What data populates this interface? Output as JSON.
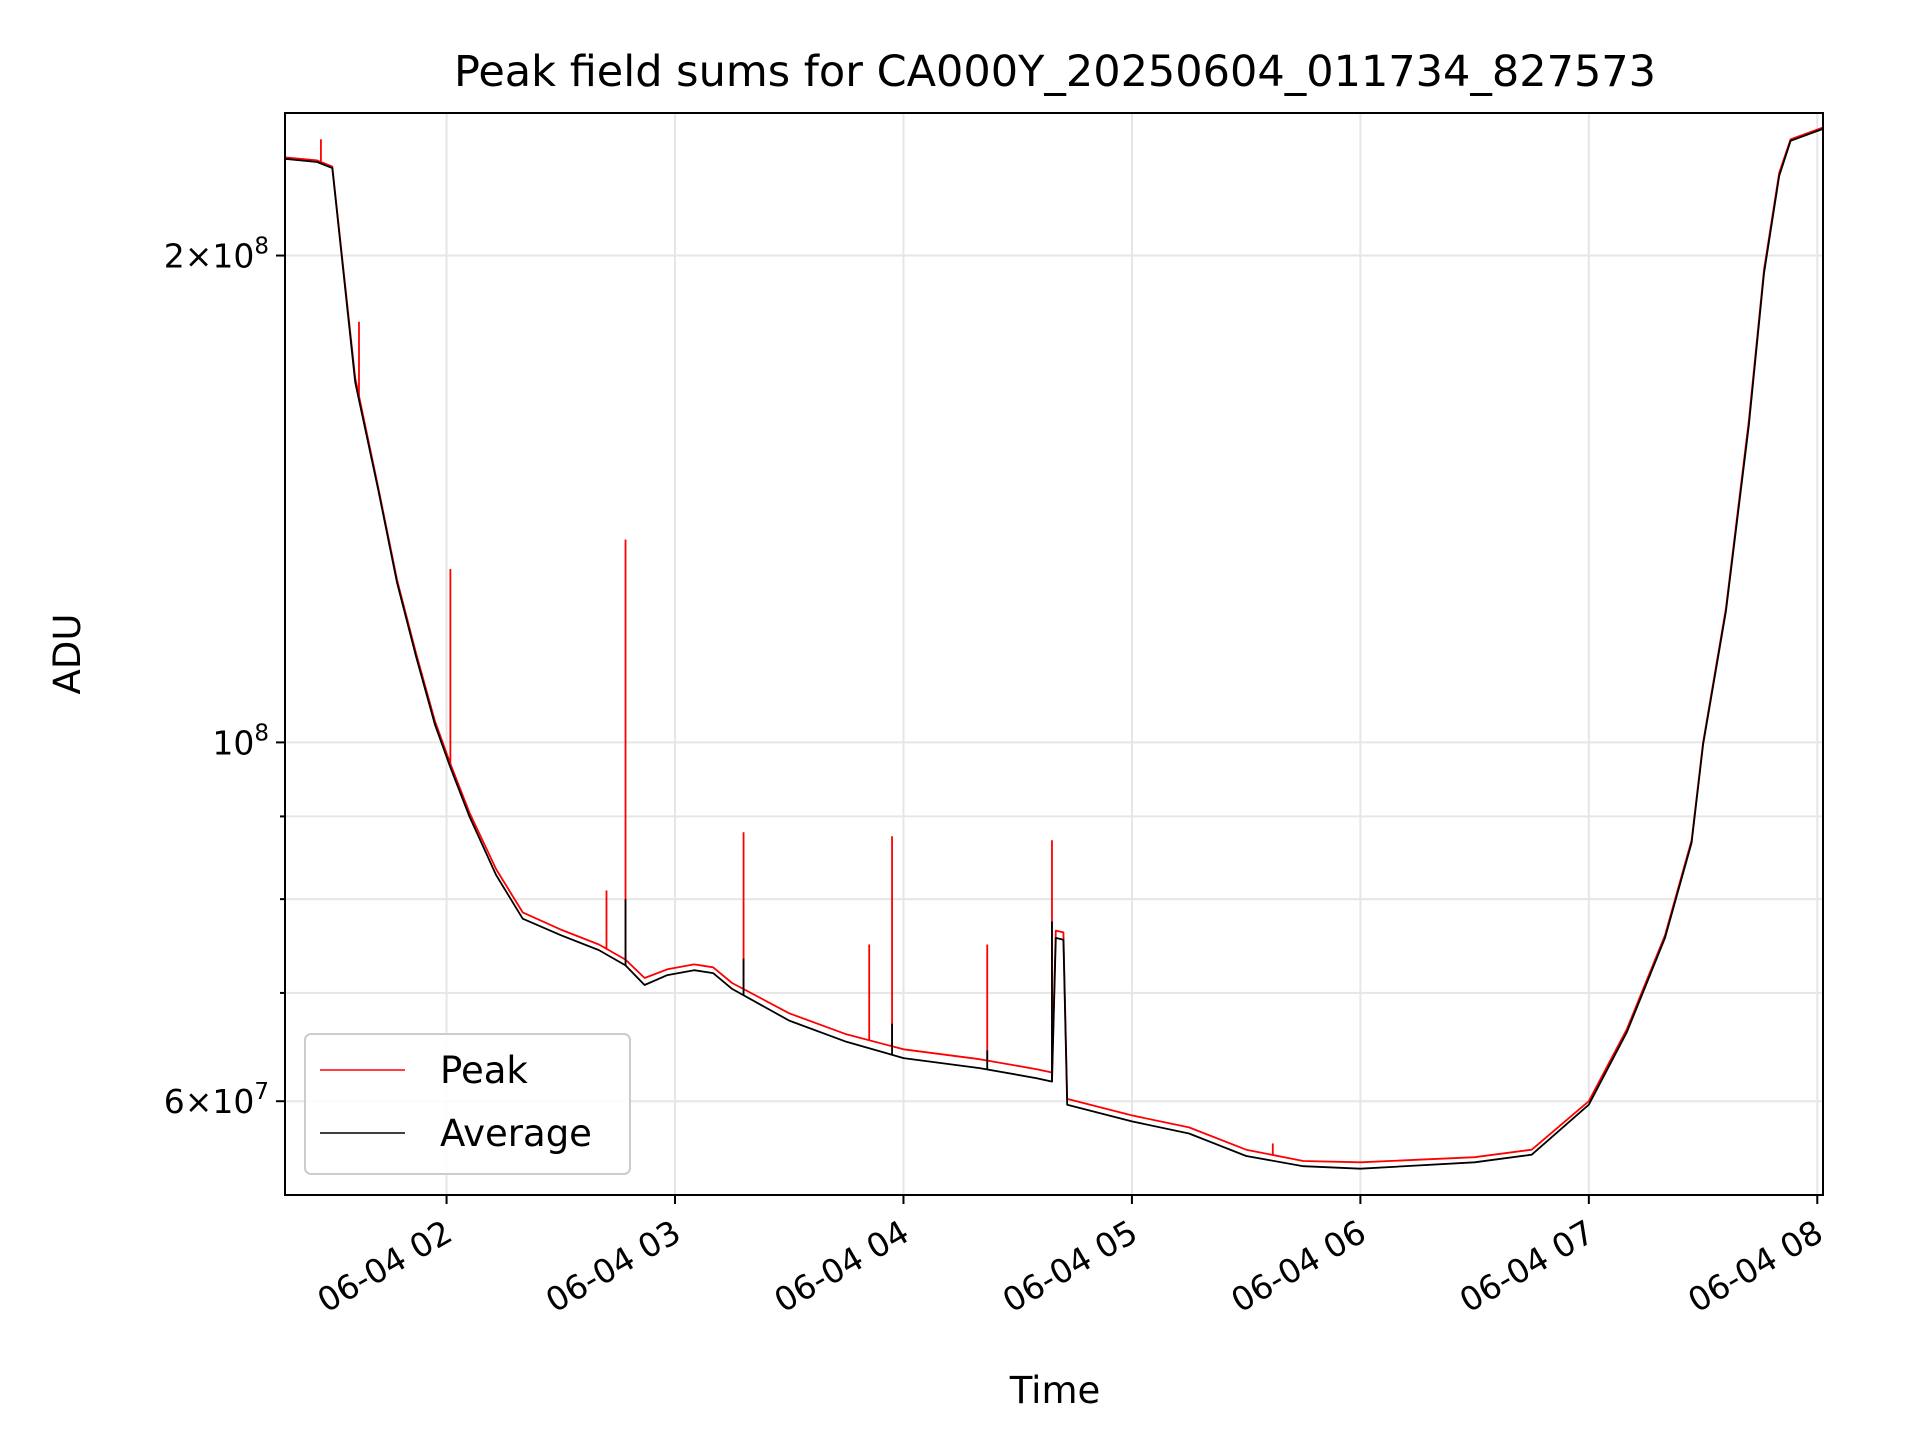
{
  "chart_data": {
    "type": "line",
    "title": "Peak field sums for CA000Y_20250604_011734_827573",
    "xlabel": "Time",
    "ylabel": "ADU",
    "y_scale": "log",
    "xlim": [
      "2025-06-04 01:17:34",
      "2025-06-04 08:01:30"
    ],
    "ylim": [
      52500000,
      245000000
    ],
    "grid": true,
    "legend_position": "lower-left",
    "x_ticks": [
      {
        "t": "2025-06-04 02:00",
        "label": "06-04 02"
      },
      {
        "t": "2025-06-04 03:00",
        "label": "06-04 03"
      },
      {
        "t": "2025-06-04 04:00",
        "label": "06-04 04"
      },
      {
        "t": "2025-06-04 05:00",
        "label": "06-04 05"
      },
      {
        "t": "2025-06-04 06:00",
        "label": "06-04 06"
      },
      {
        "t": "2025-06-04 07:00",
        "label": "06-04 07"
      },
      {
        "t": "2025-06-04 08:00",
        "label": "06-04 08"
      }
    ],
    "y_ticks_major": [
      {
        "value": 60000000,
        "base": "6×10",
        "exp": "7"
      },
      {
        "value": 100000000,
        "base": "10",
        "exp": "8"
      },
      {
        "value": 200000000,
        "base": "2×10",
        "exp": "8"
      }
    ],
    "y_ticks_minor": [
      70000000,
      80000000,
      90000000
    ],
    "series": [
      {
        "name": "Peak",
        "color": "#ff0000",
        "points": [
          [
            "2025-06-04 01:17:34",
            230000000
          ],
          [
            "2025-06-04 01:26",
            229000000
          ],
          [
            "2025-06-04 01:30",
            227000000
          ],
          [
            "2025-06-04 01:36",
            168000000
          ],
          [
            "2025-06-04 01:42",
            144000000
          ],
          [
            "2025-06-04 01:47",
            126000000
          ],
          [
            "2025-06-04 01:52",
            113500000
          ],
          [
            "2025-06-04 01:57",
            103000000
          ],
          [
            "2025-06-04 02:01",
            97000000
          ],
          [
            "2025-06-04 02:06",
            90500000
          ],
          [
            "2025-06-04 02:13",
            83500000
          ],
          [
            "2025-06-04 02:20",
            78500000
          ],
          [
            "2025-06-04 02:30",
            76600000
          ],
          [
            "2025-06-04 02:40",
            75000000
          ],
          [
            "2025-06-04 02:47",
            73400000
          ],
          [
            "2025-06-04 02:52",
            71500000
          ],
          [
            "2025-06-04 02:58",
            72400000
          ],
          [
            "2025-06-04 03:05",
            72900000
          ],
          [
            "2025-06-04 03:10",
            72600000
          ],
          [
            "2025-06-04 03:15",
            71000000
          ],
          [
            "2025-06-04 03:30",
            68000000
          ],
          [
            "2025-06-04 03:45",
            66000000
          ],
          [
            "2025-06-04 04:00",
            64600000
          ],
          [
            "2025-06-04 04:20",
            63700000
          ],
          [
            "2025-06-04 04:35",
            62800000
          ],
          [
            "2025-06-04 04:39",
            62500000
          ],
          [
            "2025-06-04 04:40",
            76500000
          ],
          [
            "2025-06-04 04:42",
            76300000
          ],
          [
            "2025-06-04 04:43",
            60200000
          ],
          [
            "2025-06-04 05:00",
            58800000
          ],
          [
            "2025-06-04 05:15",
            57800000
          ],
          [
            "2025-06-04 05:30",
            56000000
          ],
          [
            "2025-06-04 05:45",
            55100000
          ],
          [
            "2025-06-04 06:00",
            55000000
          ],
          [
            "2025-06-04 06:30",
            55400000
          ],
          [
            "2025-06-04 06:45",
            56000000
          ],
          [
            "2025-06-04 07:00",
            60000000
          ],
          [
            "2025-06-04 07:10",
            66500000
          ],
          [
            "2025-06-04 07:20",
            76000000
          ],
          [
            "2025-06-04 07:27",
            87000000
          ],
          [
            "2025-06-04 07:30",
            100000000
          ],
          [
            "2025-06-04 07:36",
            121000000
          ],
          [
            "2025-06-04 07:42",
            158000000
          ],
          [
            "2025-06-04 07:46",
            196000000
          ],
          [
            "2025-06-04 07:50",
            225000000
          ],
          [
            "2025-06-04 07:53",
            236000000
          ],
          [
            "2025-06-04 08:01:30",
            240000000
          ]
        ],
        "spikes": [
          [
            "2025-06-04 01:27",
            236000000
          ],
          [
            "2025-06-04 01:37",
            182000000
          ],
          [
            "2025-06-04 02:01",
            128000000
          ],
          [
            "2025-06-04 02:42",
            81000000
          ],
          [
            "2025-06-04 02:47",
            133500000
          ],
          [
            "2025-06-04 03:18",
            88000000
          ],
          [
            "2025-06-04 03:51",
            75000000
          ],
          [
            "2025-06-04 03:57",
            87500000
          ],
          [
            "2025-06-04 04:22",
            75000000
          ],
          [
            "2025-06-04 04:39",
            87000000
          ],
          [
            "2025-06-04 05:37",
            56500000
          ]
        ]
      },
      {
        "name": "Average",
        "color": "#000000",
        "points": [
          [
            "2025-06-04 01:17:34",
            229500000
          ],
          [
            "2025-06-04 01:26",
            228500000
          ],
          [
            "2025-06-04 01:30",
            226500000
          ],
          [
            "2025-06-04 01:36",
            167000000
          ],
          [
            "2025-06-04 01:42",
            143500000
          ],
          [
            "2025-06-04 01:47",
            125500000
          ],
          [
            "2025-06-04 01:52",
            113000000
          ],
          [
            "2025-06-04 01:57",
            102500000
          ],
          [
            "2025-06-04 02:01",
            96500000
          ],
          [
            "2025-06-04 02:06",
            90000000
          ],
          [
            "2025-06-04 02:13",
            82800000
          ],
          [
            "2025-06-04 02:20",
            77800000
          ],
          [
            "2025-06-04 02:30",
            76000000
          ],
          [
            "2025-06-04 02:40",
            74400000
          ],
          [
            "2025-06-04 02:47",
            72800000
          ],
          [
            "2025-06-04 02:52",
            70800000
          ],
          [
            "2025-06-04 02:58",
            71800000
          ],
          [
            "2025-06-04 03:05",
            72300000
          ],
          [
            "2025-06-04 03:10",
            72000000
          ],
          [
            "2025-06-04 03:15",
            70400000
          ],
          [
            "2025-06-04 03:30",
            67300000
          ],
          [
            "2025-06-04 03:45",
            65300000
          ],
          [
            "2025-06-04 04:00",
            63800000
          ],
          [
            "2025-06-04 04:20",
            62900000
          ],
          [
            "2025-06-04 04:35",
            62000000
          ],
          [
            "2025-06-04 04:39",
            61700000
          ],
          [
            "2025-06-04 04:40",
            75700000
          ],
          [
            "2025-06-04 04:42",
            75500000
          ],
          [
            "2025-06-04 04:43",
            59700000
          ],
          [
            "2025-06-04 05:00",
            58300000
          ],
          [
            "2025-06-04 05:15",
            57300000
          ],
          [
            "2025-06-04 05:30",
            55500000
          ],
          [
            "2025-06-04 05:45",
            54700000
          ],
          [
            "2025-06-04 06:00",
            54500000
          ],
          [
            "2025-06-04 06:30",
            55000000
          ],
          [
            "2025-06-04 06:45",
            55600000
          ],
          [
            "2025-06-04 07:00",
            59700000
          ],
          [
            "2025-06-04 07:10",
            66200000
          ],
          [
            "2025-06-04 07:20",
            75700000
          ],
          [
            "2025-06-04 07:27",
            86700000
          ],
          [
            "2025-06-04 07:30",
            99700000
          ],
          [
            "2025-06-04 07:36",
            120500000
          ],
          [
            "2025-06-04 07:42",
            157000000
          ],
          [
            "2025-06-04 07:46",
            195000000
          ],
          [
            "2025-06-04 07:50",
            224000000
          ],
          [
            "2025-06-04 07:53",
            235500000
          ],
          [
            "2025-06-04 08:01:30",
            239500000
          ]
        ],
        "spikes": [
          [
            "2025-06-04 02:47",
            80000000
          ],
          [
            "2025-06-04 03:18",
            73500000
          ],
          [
            "2025-06-04 03:57",
            67000000
          ],
          [
            "2025-06-04 04:22",
            64500000
          ],
          [
            "2025-06-04 04:39",
            77500000
          ]
        ]
      }
    ]
  }
}
